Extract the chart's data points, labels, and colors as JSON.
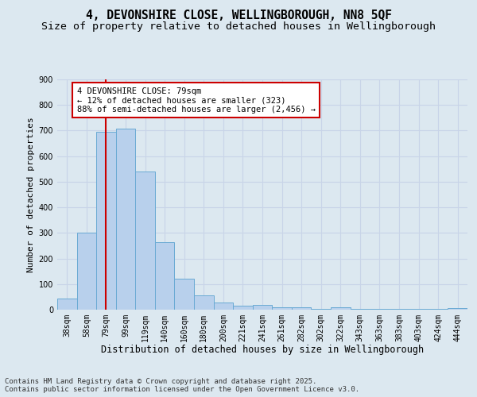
{
  "title_line1": "4, DEVONSHIRE CLOSE, WELLINGBOROUGH, NN8 5QF",
  "title_line2": "Size of property relative to detached houses in Wellingborough",
  "xlabel": "Distribution of detached houses by size in Wellingborough",
  "ylabel": "Number of detached properties",
  "categories": [
    "38sqm",
    "58sqm",
    "79sqm",
    "99sqm",
    "119sqm",
    "140sqm",
    "160sqm",
    "180sqm",
    "200sqm",
    "221sqm",
    "241sqm",
    "261sqm",
    "282sqm",
    "302sqm",
    "322sqm",
    "343sqm",
    "363sqm",
    "383sqm",
    "403sqm",
    "424sqm",
    "444sqm"
  ],
  "values": [
    45,
    300,
    695,
    707,
    540,
    265,
    122,
    55,
    28,
    15,
    18,
    8,
    10,
    3,
    8,
    3,
    3,
    3,
    3,
    3,
    5
  ],
  "bar_color": "#b8d0ec",
  "bar_edge_color": "#6aaad4",
  "vline_x_index": 2,
  "vline_color": "#cc0000",
  "annotation_text": "4 DEVONSHIRE CLOSE: 79sqm\n← 12% of detached houses are smaller (323)\n88% of semi-detached houses are larger (2,456) →",
  "annotation_box_facecolor": "#ffffff",
  "annotation_box_edgecolor": "#cc0000",
  "ylim": [
    0,
    900
  ],
  "yticks": [
    0,
    100,
    200,
    300,
    400,
    500,
    600,
    700,
    800,
    900
  ],
  "grid_color": "#c8d4e8",
  "bg_color": "#dce8f0",
  "footer_line1": "Contains HM Land Registry data © Crown copyright and database right 2025.",
  "footer_line2": "Contains public sector information licensed under the Open Government Licence v3.0.",
  "title_fontsize": 10.5,
  "subtitle_fontsize": 9.5,
  "xlabel_fontsize": 8.5,
  "ylabel_fontsize": 8.0,
  "tick_fontsize": 7.0,
  "annotation_fontsize": 7.5,
  "footer_fontsize": 6.5
}
